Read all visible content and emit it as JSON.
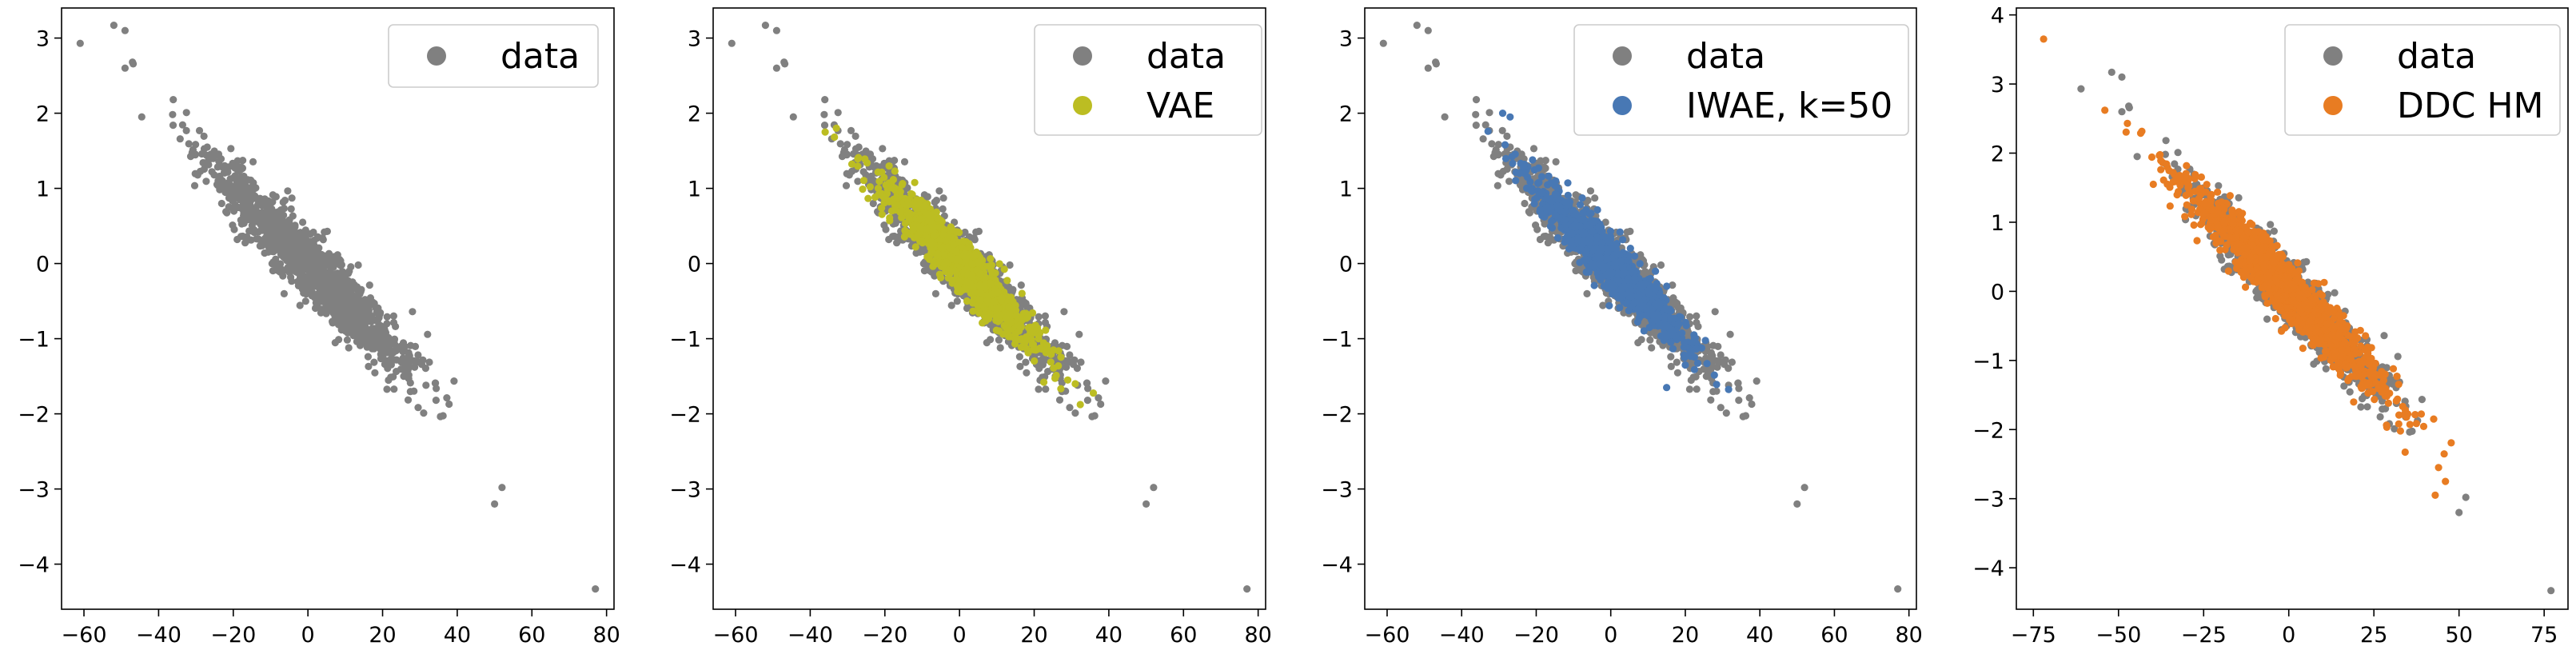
{
  "chart_data": [
    {
      "type": "scatter",
      "title": "",
      "xlabel": "",
      "ylabel": "",
      "xlim": [
        -66,
        82
      ],
      "ylim": [
        -4.6,
        3.4
      ],
      "xticks": [
        -60,
        -40,
        -20,
        0,
        20,
        40,
        60,
        80
      ],
      "xtick_labels": [
        "−60",
        "−40",
        "−20",
        "0",
        "20",
        "40",
        "60",
        "80"
      ],
      "yticks": [
        -4,
        -3,
        -2,
        -1,
        0,
        1,
        2,
        3
      ],
      "ytick_labels": [
        "−4",
        "−3",
        "−2",
        "−1",
        "0",
        "1",
        "2",
        "3"
      ],
      "legend_position": "top-right",
      "series": [
        {
          "name": "data",
          "color": "#808080",
          "distribution": {
            "slope": -0.05,
            "x_std": 13.5,
            "resid_std": 0.22,
            "n": 1400,
            "seed": 11
          },
          "outliers": [
            [
              -61,
              2.93
            ],
            [
              -52,
              3.17
            ],
            [
              -49,
              3.1
            ],
            [
              -49,
              2.6
            ],
            [
              -47,
              2.68
            ],
            [
              52,
              -2.98
            ],
            [
              50,
              -3.2
            ],
            [
              77,
              -4.33
            ]
          ]
        }
      ]
    },
    {
      "type": "scatter",
      "title": "",
      "xlabel": "",
      "ylabel": "",
      "xlim": [
        -66,
        82
      ],
      "ylim": [
        -4.6,
        3.4
      ],
      "xticks": [
        -60,
        -40,
        -20,
        0,
        20,
        40,
        60,
        80
      ],
      "xtick_labels": [
        "−60",
        "−40",
        "−20",
        "0",
        "20",
        "40",
        "60",
        "80"
      ],
      "yticks": [
        -4,
        -3,
        -2,
        -1,
        0,
        1,
        2,
        3
      ],
      "ytick_labels": [
        "−4",
        "−3",
        "−2",
        "−1",
        "0",
        "1",
        "2",
        "3"
      ],
      "legend_position": "top-right",
      "series": [
        {
          "name": "data",
          "color": "#808080",
          "distribution": {
            "slope": -0.05,
            "x_std": 13.5,
            "resid_std": 0.22,
            "n": 1400,
            "seed": 11
          },
          "outliers": [
            [
              -61,
              2.93
            ],
            [
              -52,
              3.17
            ],
            [
              -49,
              3.1
            ],
            [
              -49,
              2.6
            ],
            [
              -47,
              2.68
            ],
            [
              52,
              -2.98
            ],
            [
              50,
              -3.2
            ],
            [
              77,
              -4.33
            ]
          ]
        },
        {
          "name": "VAE",
          "color": "#bcbd22",
          "distribution": {
            "slope": -0.05,
            "x_std": 9.5,
            "resid_std": 0.16,
            "n": 1300,
            "seed": 23
          },
          "outliers": [
            [
              -36,
              1.75
            ],
            [
              -33,
              1.8
            ],
            [
              29,
              -1.55
            ],
            [
              31,
              -1.6
            ]
          ]
        }
      ]
    },
    {
      "type": "scatter",
      "title": "",
      "xlabel": "",
      "ylabel": "",
      "xlim": [
        -66,
        82
      ],
      "ylim": [
        -4.6,
        3.4
      ],
      "xticks": [
        -60,
        -40,
        -20,
        0,
        20,
        40,
        60,
        80
      ],
      "xtick_labels": [
        "−60",
        "−40",
        "−20",
        "0",
        "20",
        "40",
        "60",
        "80"
      ],
      "yticks": [
        -4,
        -3,
        -2,
        -1,
        0,
        1,
        2,
        3
      ],
      "ytick_labels": [
        "−4",
        "−3",
        "−2",
        "−1",
        "0",
        "1",
        "2",
        "3"
      ],
      "legend_position": "top-right",
      "series": [
        {
          "name": "data",
          "color": "#808080",
          "distribution": {
            "slope": -0.05,
            "x_std": 13.5,
            "resid_std": 0.22,
            "n": 1400,
            "seed": 11
          },
          "outliers": [
            [
              -61,
              2.93
            ],
            [
              -52,
              3.17
            ],
            [
              -49,
              3.1
            ],
            [
              -49,
              2.6
            ],
            [
              -47,
              2.68
            ],
            [
              52,
              -2.98
            ],
            [
              50,
              -3.2
            ],
            [
              77,
              -4.33
            ]
          ]
        },
        {
          "name": "IWAE, k=50",
          "color": "#4878b4",
          "distribution": {
            "slope": -0.05,
            "x_std": 9.8,
            "resid_std": 0.16,
            "n": 1300,
            "seed": 37
          },
          "outliers": [
            [
              -29,
              2.0
            ],
            [
              -27,
              1.95
            ],
            [
              20,
              -1.35
            ],
            [
              15,
              -1.65
            ]
          ]
        }
      ]
    },
    {
      "type": "scatter",
      "title": "",
      "xlabel": "",
      "ylabel": "",
      "xlim": [
        -80,
        82
      ],
      "ylim": [
        -4.6,
        4.1
      ],
      "xticks": [
        -75,
        -50,
        -25,
        0,
        25,
        50,
        75
      ],
      "xtick_labels": [
        "−75",
        "−50",
        "−25",
        "0",
        "25",
        "50",
        "75"
      ],
      "yticks": [
        -4,
        -3,
        -2,
        -1,
        0,
        1,
        2,
        3,
        4
      ],
      "ytick_labels": [
        "−4",
        "−3",
        "−2",
        "−1",
        "0",
        "1",
        "2",
        "3",
        "4"
      ],
      "legend_position": "top-right",
      "series": [
        {
          "name": "data",
          "color": "#808080",
          "distribution": {
            "slope": -0.05,
            "x_std": 13.5,
            "resid_std": 0.22,
            "n": 1400,
            "seed": 11
          },
          "outliers": [
            [
              -61,
              2.93
            ],
            [
              -52,
              3.17
            ],
            [
              -49,
              3.1
            ],
            [
              -49,
              2.6
            ],
            [
              -47,
              2.68
            ],
            [
              52,
              -2.98
            ],
            [
              50,
              -3.2
            ],
            [
              77,
              -4.33
            ]
          ]
        },
        {
          "name": "DDC HM",
          "color": "#e87c22",
          "distribution": {
            "slope": -0.05,
            "x_std": 14.0,
            "resid_std": 0.2,
            "n": 1400,
            "seed": 53
          },
          "outliers": [
            [
              -72,
              3.65
            ],
            [
              -54,
              2.62
            ],
            [
              44,
              -2.55
            ],
            [
              46,
              -2.75
            ],
            [
              43,
              -2.95
            ]
          ]
        }
      ]
    }
  ]
}
